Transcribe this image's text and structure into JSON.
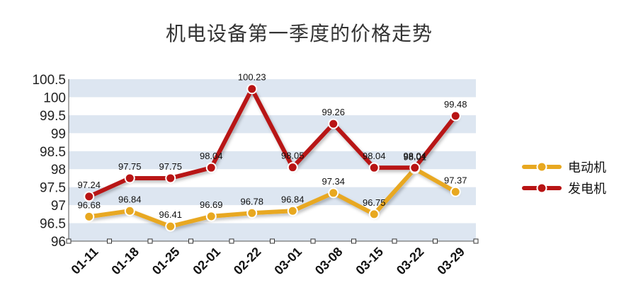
{
  "chart_data": {
    "type": "line",
    "title": "机电设备第一季度的价格走势",
    "categories": [
      "01-11",
      "01-18",
      "01-25",
      "02-01",
      "02-22",
      "03-01",
      "03-08",
      "03-15",
      "03-22",
      "03-29"
    ],
    "series": [
      {
        "name": "电动机",
        "color": "#e8a820",
        "values": [
          96.68,
          96.84,
          96.41,
          96.69,
          96.78,
          96.84,
          97.34,
          96.75,
          98.01,
          97.37
        ]
      },
      {
        "name": "发电机",
        "color": "#b81414",
        "values": [
          97.24,
          97.75,
          97.75,
          98.04,
          100.23,
          98.05,
          99.26,
          98.04,
          98.04,
          99.48
        ]
      }
    ],
    "ylim": [
      96,
      100.5
    ],
    "yticks": [
      "96",
      "96.5",
      "97",
      "97.5",
      "98",
      "98.5",
      "99",
      "99.5",
      "100",
      "100.5"
    ],
    "grid": "alternating horizontal bands",
    "band_color": "#dde6f1",
    "legend_position": "right"
  }
}
